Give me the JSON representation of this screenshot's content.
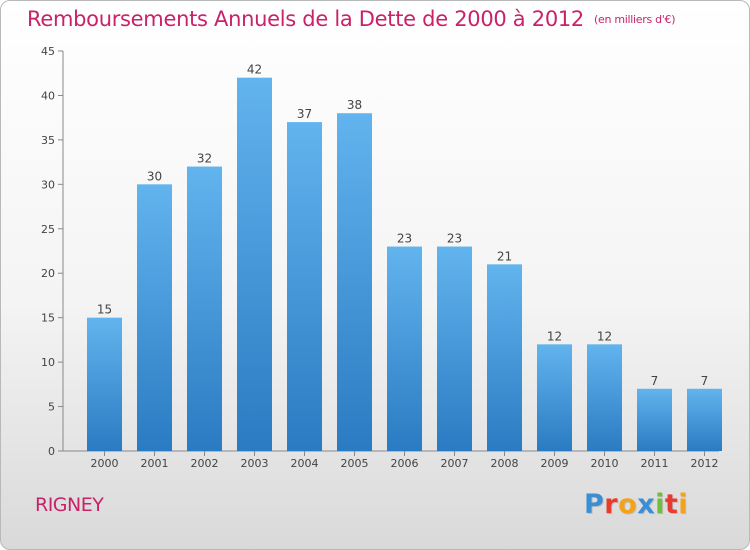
{
  "title": {
    "main": "Remboursements Annuels de la Dette de 2000 à 2012",
    "unit": "(en milliers d'€)"
  },
  "place_name": "RIGNEY",
  "logo": {
    "text": "Proxiti",
    "letters": [
      {
        "ch": "P",
        "color": "#3a8fd4"
      },
      {
        "ch": "r",
        "color": "#e63b2e"
      },
      {
        "ch": "o",
        "color": "#f3a31b"
      },
      {
        "ch": "x",
        "color": "#3a8fd4"
      },
      {
        "ch": "i",
        "color": "#6fbf3a"
      },
      {
        "ch": "t",
        "color": "#e63b2e"
      },
      {
        "ch": "i",
        "color": "#f3a31b"
      }
    ]
  },
  "colors": {
    "accent": "#c8226a",
    "bar_top": "#62b4ee",
    "bar_bottom": "#2a7bc2"
  },
  "chart_data": {
    "type": "bar",
    "categories": [
      "2000",
      "2001",
      "2002",
      "2003",
      "2004",
      "2005",
      "2006",
      "2007",
      "2008",
      "2009",
      "2010",
      "2011",
      "2012"
    ],
    "values": [
      15,
      30,
      32,
      42,
      37,
      38,
      23,
      23,
      21,
      12,
      12,
      7,
      7
    ],
    "title": "Remboursements Annuels de la Dette de 2000 à 2012",
    "ylim": [
      0,
      45
    ],
    "yticks": [
      0,
      5,
      10,
      15,
      20,
      25,
      30,
      35,
      40,
      45
    ],
    "grid": false,
    "legend": "none"
  }
}
